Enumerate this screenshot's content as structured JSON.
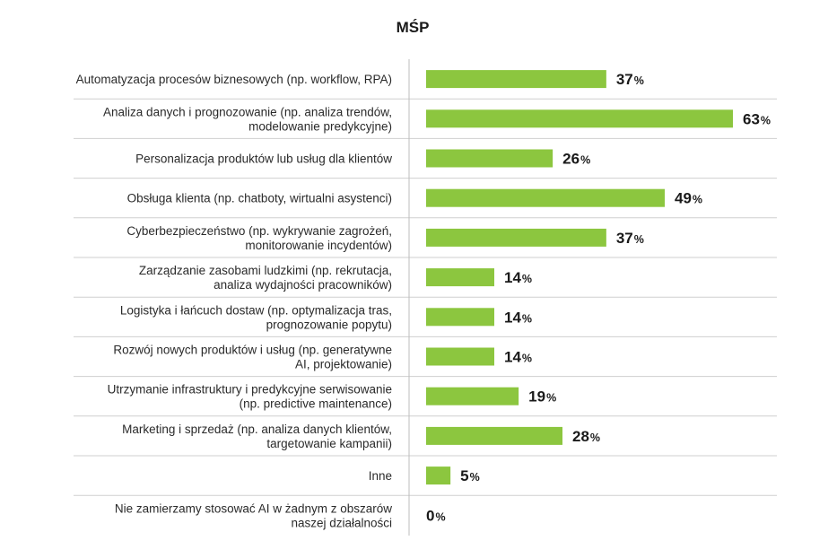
{
  "chart_data": {
    "type": "bar",
    "orientation": "horizontal",
    "title": "MŚP",
    "value_suffix": "%",
    "xlim": [
      0,
      63
    ],
    "grid": false,
    "colors": {
      "bar": "#8cc63f",
      "separator": "#cfcfcf",
      "axis": "#bdbdbd"
    },
    "categories": [
      [
        "Automatyzacja procesów biznesowych (np. workflow, RPA)"
      ],
      [
        "Analiza danych i prognozowanie (np. analiza trendów,",
        "modelowanie predykcyjne)"
      ],
      [
        "Personalizacja produktów lub usług dla klientów"
      ],
      [
        "Obsługa klienta (np. chatboty, wirtualni asystenci)"
      ],
      [
        "Cyberbezpieczeństwo (np. wykrywanie zagrożeń,",
        "monitorowanie incydentów)"
      ],
      [
        "Zarządzanie zasobami ludzkimi (np. rekrutacja,",
        "analiza wydajności pracowników)"
      ],
      [
        "Logistyka i łańcuch dostaw (np. optymalizacja tras,",
        "prognozowanie popytu)"
      ],
      [
        "Rozwój nowych produktów i usług (np. generatywne",
        "AI, projektowanie)"
      ],
      [
        "Utrzymanie infrastruktury i predykcyjne serwisowanie",
        "(np. predictive maintenance)"
      ],
      [
        "Marketing i sprzedaż (np. analiza danych klientów,",
        "targetowanie kampanii)"
      ],
      [
        "Inne"
      ],
      [
        "Nie zamierzamy stosować AI w żadnym z obszarów",
        "naszej działalności"
      ]
    ],
    "values": [
      37,
      63,
      26,
      49,
      37,
      14,
      14,
      14,
      19,
      28,
      5,
      0
    ]
  }
}
